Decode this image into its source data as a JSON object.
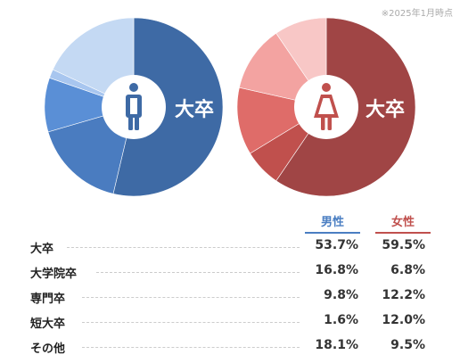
{
  "note": "※2025年1月時点",
  "headers": {
    "male": "男性",
    "female": "女性"
  },
  "pie_center_label": "大卒",
  "colors": {
    "male": [
      "#3e6aa5",
      "#4a7cc0",
      "#5a8fd6",
      "#a8c6ef",
      "#c4d9f3"
    ],
    "female": [
      "#a04545",
      "#c0504d",
      "#df6c69",
      "#f3a3a1",
      "#f8c7c6"
    ]
  },
  "chart_data": [
    {
      "type": "pie",
      "series_key": "male",
      "categories": [
        "大卒",
        "大学院卒",
        "専門卒",
        "短大卒",
        "その他"
      ],
      "values": [
        53.7,
        16.8,
        9.8,
        1.6,
        18.1
      ]
    },
    {
      "type": "pie",
      "series_key": "female",
      "categories": [
        "大卒",
        "大学院卒",
        "専門卒",
        "短大卒",
        "その他"
      ],
      "values": [
        59.5,
        6.8,
        12.2,
        12.0,
        9.5
      ]
    }
  ],
  "rows": [
    {
      "label": "大卒",
      "male": "53.7%",
      "female": "59.5%"
    },
    {
      "label": "大学院卒",
      "male": "16.8%",
      "female": "6.8%"
    },
    {
      "label": "専門卒",
      "male": "9.8%",
      "female": "12.2%"
    },
    {
      "label": "短大卒",
      "male": "1.6%",
      "female": "12.0%"
    },
    {
      "label": "その他",
      "male": "18.1%",
      "female": "9.5%"
    }
  ]
}
